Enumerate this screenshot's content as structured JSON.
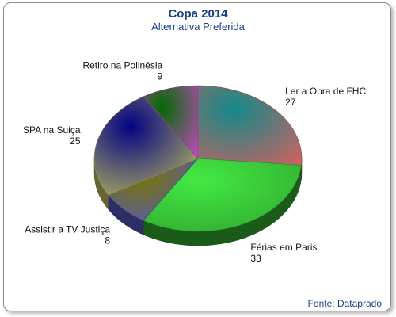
{
  "chart_data": {
    "type": "pie",
    "title": "Copa 2014",
    "subtitle": "Alternativa Preferida",
    "source": "Fonte: Dataprado",
    "slices": [
      {
        "label": "Ler a Obra de FHC",
        "value": 27,
        "color": "#ff7f7f"
      },
      {
        "label": "Férias em Paris",
        "value": 33,
        "color": "#3ed83e"
      },
      {
        "label": "Assistir a TV Justiça",
        "value": 8,
        "color": "#6e6ef0"
      },
      {
        "label": "SPA na Suiça",
        "value": 25,
        "color": "#f0f07a"
      },
      {
        "label": "Retiro na Polinésia",
        "value": 9,
        "color": "#f060f0"
      }
    ]
  }
}
